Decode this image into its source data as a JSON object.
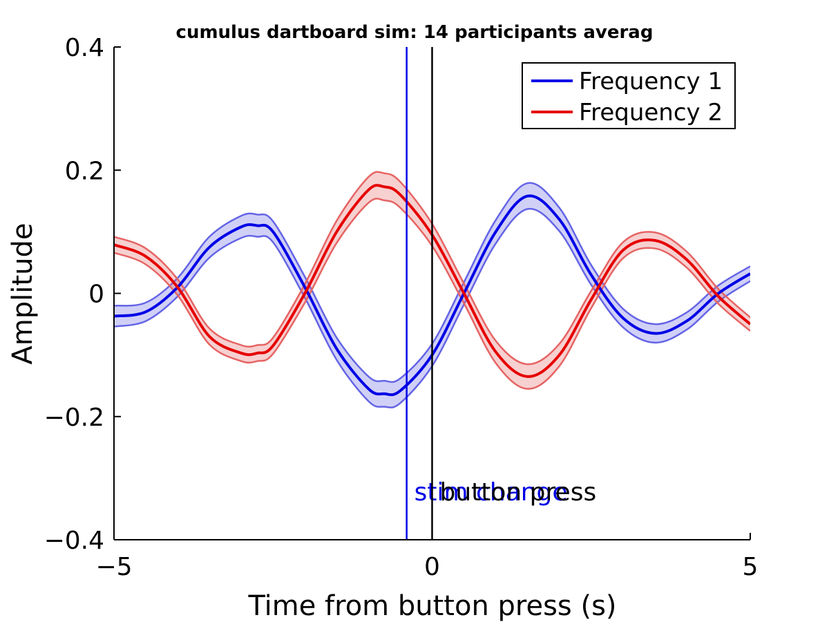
{
  "chart_data": {
    "type": "line",
    "title": "cumulus dartboard sim: 14 participants averag",
    "xlabel": "Time from button press (s)",
    "ylabel": "Amplitude",
    "xlim": [
      -5,
      5
    ],
    "ylim": [
      -0.4,
      0.4
    ],
    "x_ticks": [
      -5,
      0,
      5
    ],
    "x_tick_labels": [
      "−5",
      "0",
      "5"
    ],
    "y_ticks": [
      -0.4,
      -0.2,
      0,
      0.2,
      0.4
    ],
    "y_tick_labels": [
      "−0.4",
      "−0.2",
      "0",
      "0.2",
      "0.4"
    ],
    "grid": false,
    "legend_position": "top-right",
    "x": [
      -5,
      -4.5,
      -4,
      -3.5,
      -3,
      -2.75,
      -2.5,
      -2,
      -1.5,
      -1,
      -0.75,
      -0.5,
      0,
      0.5,
      1,
      1.5,
      2,
      2.5,
      3,
      3.5,
      4,
      4.5,
      5
    ],
    "series": [
      {
        "name": "Frequency 1",
        "color": "#0000e6",
        "band_color": "#6464e6",
        "values": [
          -0.037,
          -0.03,
          0.01,
          0.075,
          0.108,
          0.11,
          0.1,
          0.01,
          -0.09,
          -0.155,
          -0.163,
          -0.158,
          -0.1,
          0.0,
          0.1,
          0.158,
          0.12,
          0.03,
          -0.04,
          -0.065,
          -0.045,
          0.0,
          0.032
        ],
        "band_halfwidth": [
          0.017,
          0.015,
          0.015,
          0.017,
          0.018,
          0.018,
          0.017,
          0.017,
          0.018,
          0.02,
          0.021,
          0.02,
          0.018,
          0.018,
          0.019,
          0.021,
          0.019,
          0.016,
          0.015,
          0.015,
          0.014,
          0.013,
          0.012
        ]
      },
      {
        "name": "Frequency 2",
        "color": "#e60000",
        "band_color": "#e66464",
        "values": [
          0.079,
          0.06,
          0.01,
          -0.07,
          -0.097,
          -0.097,
          -0.085,
          0.0,
          0.1,
          0.168,
          0.173,
          0.16,
          0.095,
          0.0,
          -0.095,
          -0.135,
          -0.1,
          -0.01,
          0.07,
          0.086,
          0.055,
          -0.005,
          -0.05
        ],
        "band_halfwidth": [
          0.013,
          0.013,
          0.013,
          0.013,
          0.013,
          0.013,
          0.013,
          0.015,
          0.018,
          0.021,
          0.022,
          0.021,
          0.018,
          0.016,
          0.018,
          0.02,
          0.018,
          0.014,
          0.013,
          0.013,
          0.013,
          0.012,
          0.011
        ]
      }
    ],
    "vertical_lines": [
      {
        "x": -0.4,
        "color": "#0000e6",
        "label": "stim change"
      },
      {
        "x": 0,
        "color": "#000000",
        "label": "button press"
      }
    ]
  }
}
